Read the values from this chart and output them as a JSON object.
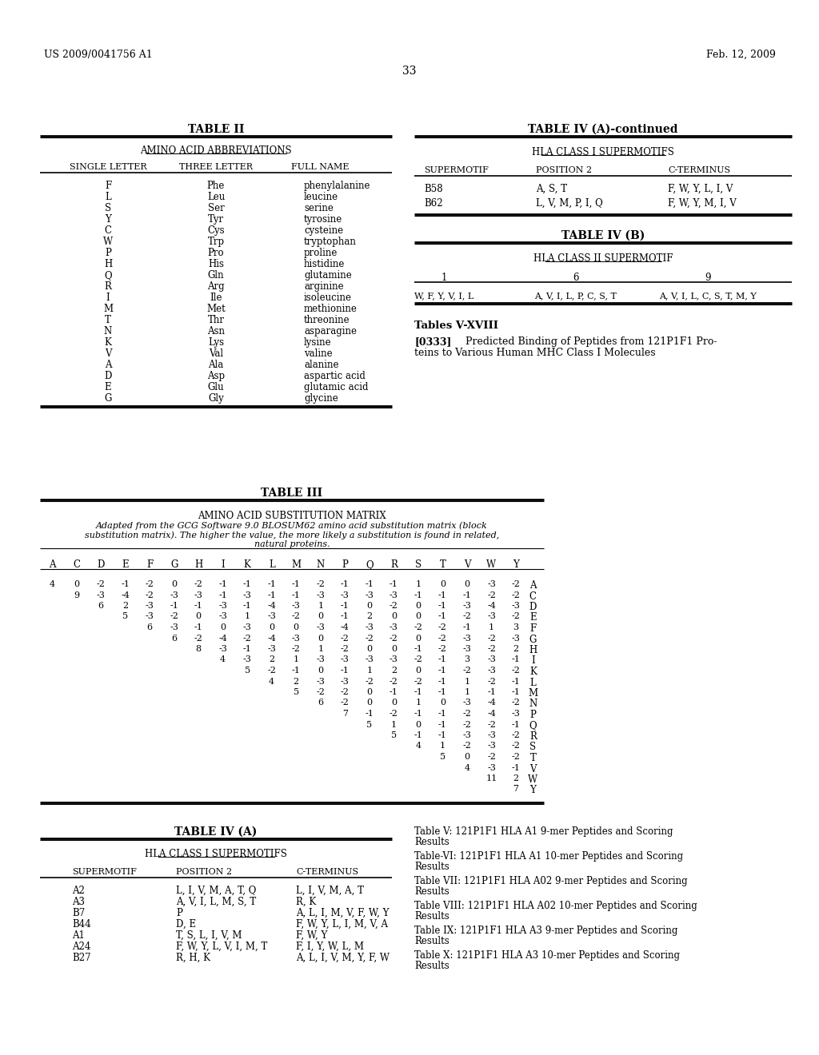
{
  "page_left": "US 2009/0041756 A1",
  "page_right": "Feb. 12, 2009",
  "page_number": "33",
  "bg_color": "#ffffff",
  "table2_title": "TABLE II",
  "table2_subtitle": "AMINO ACID ABBREVIATIONS",
  "table2_cols": [
    "SINGLE LETTER",
    "THREE LETTER",
    "FULL NAME"
  ],
  "table2_rows": [
    [
      "F",
      "Phe",
      "phenylalanine"
    ],
    [
      "L",
      "Leu",
      "leucine"
    ],
    [
      "S",
      "Ser",
      "serine"
    ],
    [
      "Y",
      "Tyr",
      "tyrosine"
    ],
    [
      "C",
      "Cys",
      "cysteine"
    ],
    [
      "W",
      "Trp",
      "tryptophan"
    ],
    [
      "P",
      "Pro",
      "proline"
    ],
    [
      "H",
      "His",
      "histidine"
    ],
    [
      "Q",
      "Gln",
      "glutamine"
    ],
    [
      "R",
      "Arg",
      "arginine"
    ],
    [
      "I",
      "Ile",
      "isoleucine"
    ],
    [
      "M",
      "Met",
      "methionine"
    ],
    [
      "T",
      "Thr",
      "threonine"
    ],
    [
      "N",
      "Asn",
      "asparagine"
    ],
    [
      "K",
      "Lys",
      "lysine"
    ],
    [
      "V",
      "Val",
      "valine"
    ],
    [
      "A",
      "Ala",
      "alanine"
    ],
    [
      "D",
      "Asp",
      "aspartic acid"
    ],
    [
      "E",
      "Glu",
      "glutamic acid"
    ],
    [
      "G",
      "Gly",
      "glycine"
    ]
  ],
  "table4a_cont_title": "TABLE IV (A)-continued",
  "table4a_cont_subtitle": "HLA CLASS I SUPERMOTIFS",
  "table4a_cont_cols": [
    "SUPERMOTIF",
    "POSITION 2",
    "C-TERMINUS"
  ],
  "table4a_cont_rows": [
    [
      "B58",
      "A, S, T",
      "F, W, Y, L, I, V"
    ],
    [
      "B62",
      "L, V, M, P, I, Q",
      "F, W, Y, M, I, V"
    ]
  ],
  "table4b_title": "TABLE IV (B)",
  "table4b_subtitle": "HLA CLASS II SUPERMOTIF",
  "table4b_pos_headers": [
    "1",
    "6",
    "9"
  ],
  "table4b_row": [
    "W, F, Y, V, I, L",
    "A, V, I, L, P, C, S, T",
    "A, V, I, L, C, S, T, M, Y"
  ],
  "tables_v_xviii": "Tables V-XVIII",
  "para_0333_label": "[0333]",
  "para_0333_text": "   Predicted Binding of Peptides from 121P1F1 Pro-\nteins to Various Human MHC Class I Molecules",
  "table3_title": "TABLE III",
  "table3_subtitle1": "AMINO ACID SUBSTITUTION MATRIX",
  "table3_subtitle2a": "Adapted from the GCG Software 9.0 BLOSUM62 amino acid substitution matrix (block",
  "table3_subtitle2b": "substitution matrix). The higher the value, the more likely a substitution is found in related,",
  "table3_subtitle2c": "natural proteins.",
  "table3_headers": [
    "A",
    "C",
    "D",
    "E",
    "F",
    "G",
    "H",
    "I",
    "K",
    "L",
    "M",
    "N",
    "P",
    "Q",
    "R",
    "S",
    "T",
    "V",
    "W",
    "Y"
  ],
  "table3_matrix_rows": [
    [
      "4",
      "0",
      "-2",
      "-1",
      "-2",
      "0",
      "-2",
      "-1",
      "-1",
      "-1",
      "-1",
      "-2",
      "-1",
      "-1",
      "-1",
      "1",
      "0",
      "0",
      "-3",
      "-2",
      "A"
    ],
    [
      "",
      "9",
      "-3",
      "-4",
      "-2",
      "-3",
      "-3",
      "-1",
      "-3",
      "-1",
      "-1",
      "-3",
      "-3",
      "-3",
      "-3",
      "-1",
      "-1",
      "-1",
      "-2",
      "-2",
      "C"
    ],
    [
      "",
      "",
      "6",
      "2",
      "-3",
      "-1",
      "-1",
      "-3",
      "-1",
      "-4",
      "-3",
      "1",
      "-1",
      "0",
      "-2",
      "0",
      "-1",
      "-3",
      "-4",
      "-3",
      "D"
    ],
    [
      "",
      "",
      "",
      "5",
      "-3",
      "-2",
      "0",
      "-3",
      "1",
      "-3",
      "-2",
      "0",
      "-1",
      "2",
      "0",
      "0",
      "-1",
      "-2",
      "-3",
      "-2",
      "E"
    ],
    [
      "",
      "",
      "",
      "",
      "6",
      "-3",
      "-1",
      "0",
      "-3",
      "0",
      "0",
      "-3",
      "-4",
      "-3",
      "-3",
      "-2",
      "-2",
      "-1",
      "1",
      "3",
      "F"
    ],
    [
      "",
      "",
      "",
      "",
      "",
      "6",
      "-2",
      "-4",
      "-2",
      "-4",
      "-3",
      "0",
      "-2",
      "-2",
      "-2",
      "0",
      "-2",
      "-3",
      "-2",
      "-3",
      "G"
    ],
    [
      "",
      "",
      "",
      "",
      "",
      "",
      "8",
      "-3",
      "-1",
      "-3",
      "-2",
      "1",
      "-2",
      "0",
      "0",
      "-1",
      "-2",
      "-3",
      "-2",
      "2",
      "H"
    ],
    [
      "",
      "",
      "",
      "",
      "",
      "",
      "",
      "4",
      "-3",
      "2",
      "1",
      "-3",
      "-3",
      "-3",
      "-3",
      "-2",
      "-1",
      "3",
      "-3",
      "-1",
      "I"
    ],
    [
      "",
      "",
      "",
      "",
      "",
      "",
      "",
      "",
      "5",
      "-2",
      "-1",
      "0",
      "-1",
      "1",
      "2",
      "0",
      "-1",
      "-2",
      "-3",
      "-2",
      "K"
    ],
    [
      "",
      "",
      "",
      "",
      "",
      "",
      "",
      "",
      "",
      "4",
      "2",
      "-3",
      "-3",
      "-2",
      "-2",
      "-2",
      "-1",
      "1",
      "-2",
      "-1",
      "L"
    ],
    [
      "",
      "",
      "",
      "",
      "",
      "",
      "",
      "",
      "",
      "",
      "5",
      "-2",
      "-2",
      "0",
      "-1",
      "-1",
      "-1",
      "1",
      "-1",
      "-1",
      "M"
    ],
    [
      "",
      "",
      "",
      "",
      "",
      "",
      "",
      "",
      "",
      "",
      "",
      "6",
      "-2",
      "0",
      "0",
      "1",
      "0",
      "-3",
      "-4",
      "-2",
      "N"
    ],
    [
      "",
      "",
      "",
      "",
      "",
      "",
      "",
      "",
      "",
      "",
      "",
      "",
      "7",
      "-1",
      "-2",
      "-1",
      "-1",
      "-2",
      "-4",
      "-3",
      "P"
    ],
    [
      "",
      "",
      "",
      "",
      "",
      "",
      "",
      "",
      "",
      "",
      "",
      "",
      "",
      "5",
      "1",
      "0",
      "-1",
      "-2",
      "-2",
      "-1",
      "Q"
    ],
    [
      "",
      "",
      "",
      "",
      "",
      "",
      "",
      "",
      "",
      "",
      "",
      "",
      "",
      "",
      "5",
      "-1",
      "-1",
      "-3",
      "-3",
      "-2",
      "R"
    ],
    [
      "",
      "",
      "",
      "",
      "",
      "",
      "",
      "",
      "",
      "",
      "",
      "",
      "",
      "",
      "",
      "4",
      "1",
      "-2",
      "-3",
      "-2",
      "S"
    ],
    [
      "",
      "",
      "",
      "",
      "",
      "",
      "",
      "",
      "",
      "",
      "",
      "",
      "",
      "",
      "",
      "",
      "5",
      "0",
      "-2",
      "-2",
      "T"
    ],
    [
      "",
      "",
      "",
      "",
      "",
      "",
      "",
      "",
      "",
      "",
      "",
      "",
      "",
      "",
      "",
      "",
      "",
      "4",
      "-3",
      "-1",
      "V"
    ],
    [
      "",
      "",
      "",
      "",
      "",
      "",
      "",
      "",
      "",
      "",
      "",
      "",
      "",
      "",
      "",
      "",
      "",
      "",
      "11",
      "2",
      "W"
    ],
    [
      "",
      "",
      "",
      "",
      "",
      "",
      "",
      "",
      "",
      "",
      "",
      "",
      "",
      "",
      "",
      "",
      "",
      "",
      "",
      "7",
      "Y"
    ]
  ],
  "table4a_title": "TABLE IV (A)",
  "table4a_subtitle": "HLA CLASS I SUPERMOTIFS",
  "table4a_cols": [
    "SUPERMOTIF",
    "POSITION 2",
    "C-TERMINUS"
  ],
  "table4a_rows": [
    [
      "A2",
      "L, I, V, M, A, T, Q",
      "L, I, V, M, A, T"
    ],
    [
      "A3",
      "A, V, I, L, M, S, T",
      "R, K"
    ],
    [
      "B7",
      "P",
      "A, L, I, M, V, F, W, Y"
    ],
    [
      "B44",
      "D, E",
      "F, W, Y, L, I, M, V, A"
    ],
    [
      "A1",
      "T, S, L, I, V, M",
      "F, W, Y"
    ],
    [
      "A24",
      "F, W, Y, L, V, I, M, T",
      "F, I, Y, W, L, M"
    ],
    [
      "B27",
      "R, H, K",
      "A, L, I, V, M, Y, F, W"
    ]
  ],
  "right_bottom_text": [
    [
      "Table V:",
      " 121P1F1 HLA A1 9-mer Peptides and Scoring\nResults"
    ],
    [
      "Table-VI:",
      " 121P1F1 HLA A1 10-mer Peptides and Scoring\nResults"
    ],
    [
      "Table VII:",
      " 121P1F1 HLA A02 9-mer Peptides and Scoring\nResults"
    ],
    [
      "Table VIII:",
      " 121P1F1 HLA A02 10-mer Peptides and Scoring\nResults"
    ],
    [
      "Table IX:",
      " 121P1F1 HLA A3 9-mer Peptides and Scoring\nResults"
    ],
    [
      "Table X:",
      " 121P1F1 HLA A3 10-mer Peptides and Scoring\nResults"
    ]
  ]
}
